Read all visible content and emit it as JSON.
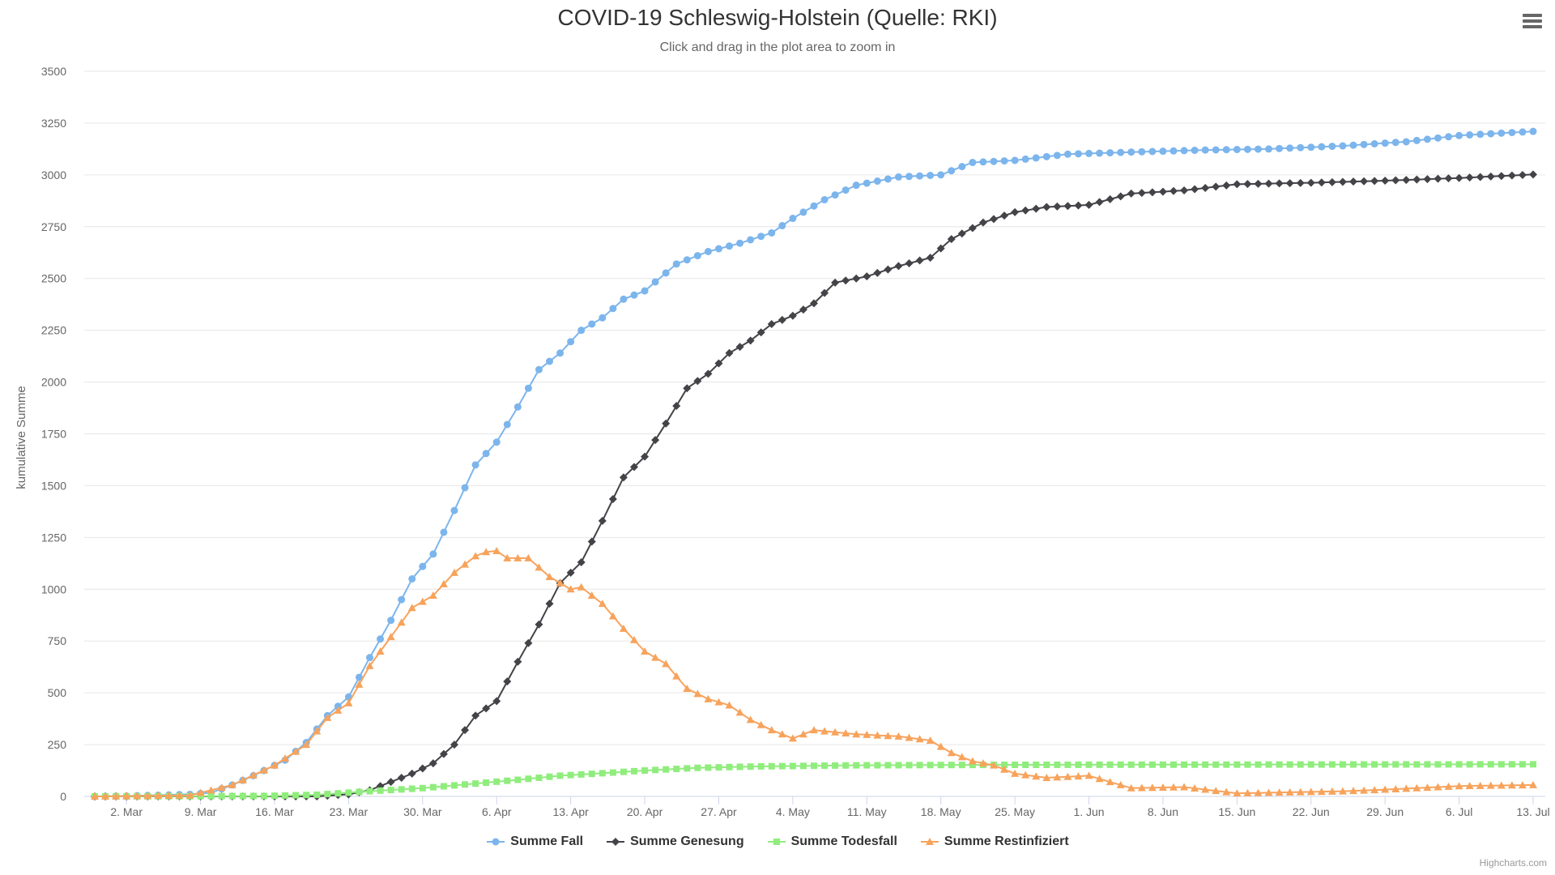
{
  "chart": {
    "title": "COVID-19 Schleswig-Holstein (Quelle: RKI)",
    "subtitle": "Click and drag in the plot area to zoom in",
    "credits": "Highcharts.com",
    "menu_icon": "hamburger-menu-icon"
  },
  "chart_data": {
    "type": "line",
    "title": "COVID-19 Schleswig-Holstein (Quelle: RKI)",
    "subtitle": "Click and drag in the plot area to zoom in",
    "xlabel": "",
    "ylabel": "kumulative Summe",
    "x_start": "2020-02-28",
    "x_end": "2020-07-13",
    "x_ticks": [
      "2. Mar",
      "9. Mar",
      "16. Mar",
      "23. Mar",
      "30. Mar",
      "6. Apr",
      "13. Apr",
      "20. Apr",
      "27. Apr",
      "4. May",
      "11. May",
      "18. May",
      "25. May",
      "1. Jun",
      "8. Jun",
      "15. Jun",
      "22. Jun",
      "29. Jun",
      "6. Jul",
      "13. Jul"
    ],
    "ylim": [
      0,
      3500
    ],
    "y_ticks": [
      0,
      250,
      500,
      750,
      1000,
      1250,
      1500,
      1750,
      2000,
      2250,
      2500,
      2750,
      3000,
      3250,
      3500
    ],
    "grid": true,
    "legend_position": "bottom-center",
    "series": [
      {
        "name": "Summe Fall",
        "color": "#7cb5ec",
        "marker": "circle",
        "points": [
          [
            "2020-02-28",
            0
          ],
          [
            "2020-03-02",
            2
          ],
          [
            "2020-03-05",
            6
          ],
          [
            "2020-03-08",
            10
          ],
          [
            "2020-03-10",
            18
          ],
          [
            "2020-03-12",
            55
          ],
          [
            "2020-03-14",
            100
          ],
          [
            "2020-03-17",
            175
          ],
          [
            "2020-03-19",
            260
          ],
          [
            "2020-03-21",
            390
          ],
          [
            "2020-03-23",
            480
          ],
          [
            "2020-03-25",
            670
          ],
          [
            "2020-03-27",
            850
          ],
          [
            "2020-03-29",
            1050
          ],
          [
            "2020-03-31",
            1170
          ],
          [
            "2020-04-02",
            1380
          ],
          [
            "2020-04-04",
            1600
          ],
          [
            "2020-04-06",
            1710
          ],
          [
            "2020-04-08",
            1880
          ],
          [
            "2020-04-10",
            2060
          ],
          [
            "2020-04-12",
            2140
          ],
          [
            "2020-04-14",
            2250
          ],
          [
            "2020-04-16",
            2310
          ],
          [
            "2020-04-18",
            2400
          ],
          [
            "2020-04-20",
            2440
          ],
          [
            "2020-04-23",
            2570
          ],
          [
            "2020-04-26",
            2630
          ],
          [
            "2020-04-29",
            2670
          ],
          [
            "2020-05-02",
            2720
          ],
          [
            "2020-05-04",
            2790
          ],
          [
            "2020-05-07",
            2880
          ],
          [
            "2020-05-10",
            2950
          ],
          [
            "2020-05-14",
            2990
          ],
          [
            "2020-05-18",
            3000
          ],
          [
            "2020-05-21",
            3060
          ],
          [
            "2020-05-25",
            3070
          ],
          [
            "2020-05-30",
            3100
          ],
          [
            "2020-06-05",
            3110
          ],
          [
            "2020-06-12",
            3120
          ],
          [
            "2020-06-18",
            3125
          ],
          [
            "2020-06-25",
            3140
          ],
          [
            "2020-07-01",
            3160
          ],
          [
            "2020-07-06",
            3190
          ],
          [
            "2020-07-13",
            3210
          ]
        ]
      },
      {
        "name": "Summe Genesung",
        "color": "#434348",
        "marker": "diamond",
        "points": [
          [
            "2020-02-28",
            0
          ],
          [
            "2020-03-20",
            0
          ],
          [
            "2020-03-23",
            10
          ],
          [
            "2020-03-25",
            30
          ],
          [
            "2020-03-27",
            70
          ],
          [
            "2020-03-29",
            110
          ],
          [
            "2020-03-31",
            160
          ],
          [
            "2020-04-02",
            250
          ],
          [
            "2020-04-04",
            390
          ],
          [
            "2020-04-06",
            460
          ],
          [
            "2020-04-08",
            650
          ],
          [
            "2020-04-10",
            830
          ],
          [
            "2020-04-12",
            1030
          ],
          [
            "2020-04-14",
            1130
          ],
          [
            "2020-04-16",
            1330
          ],
          [
            "2020-04-18",
            1540
          ],
          [
            "2020-04-20",
            1640
          ],
          [
            "2020-04-22",
            1800
          ],
          [
            "2020-04-24",
            1970
          ],
          [
            "2020-04-26",
            2040
          ],
          [
            "2020-04-28",
            2140
          ],
          [
            "2020-04-30",
            2200
          ],
          [
            "2020-05-02",
            2280
          ],
          [
            "2020-05-04",
            2320
          ],
          [
            "2020-05-06",
            2380
          ],
          [
            "2020-05-08",
            2480
          ],
          [
            "2020-05-11",
            2510
          ],
          [
            "2020-05-14",
            2560
          ],
          [
            "2020-05-17",
            2600
          ],
          [
            "2020-05-19",
            2690
          ],
          [
            "2020-05-22",
            2770
          ],
          [
            "2020-05-25",
            2820
          ],
          [
            "2020-05-28",
            2845
          ],
          [
            "2020-06-01",
            2855
          ],
          [
            "2020-06-05",
            2910
          ],
          [
            "2020-06-10",
            2925
          ],
          [
            "2020-06-15",
            2955
          ],
          [
            "2020-06-22",
            2962
          ],
          [
            "2020-06-29",
            2972
          ],
          [
            "2020-07-06",
            2985
          ],
          [
            "2020-07-13",
            3002
          ]
        ]
      },
      {
        "name": "Summe Todesfall",
        "color": "#90ed7d",
        "marker": "square",
        "points": [
          [
            "2020-02-28",
            0
          ],
          [
            "2020-03-15",
            2
          ],
          [
            "2020-03-20",
            8
          ],
          [
            "2020-03-25",
            25
          ],
          [
            "2020-03-30",
            40
          ],
          [
            "2020-04-04",
            62
          ],
          [
            "2020-04-08",
            80
          ],
          [
            "2020-04-12",
            100
          ],
          [
            "2020-04-16",
            112
          ],
          [
            "2020-04-20",
            125
          ],
          [
            "2020-04-25",
            138
          ],
          [
            "2020-05-01",
            145
          ],
          [
            "2020-05-10",
            150
          ],
          [
            "2020-05-20",
            152
          ],
          [
            "2020-06-01",
            153
          ],
          [
            "2020-06-20",
            154
          ],
          [
            "2020-07-13",
            155
          ]
        ]
      },
      {
        "name": "Summe Restinfiziert",
        "color": "#f7a35c",
        "marker": "triangle",
        "points": [
          [
            "2020-02-28",
            0
          ],
          [
            "2020-03-08",
            5
          ],
          [
            "2020-03-12",
            55
          ],
          [
            "2020-03-16",
            150
          ],
          [
            "2020-03-19",
            250
          ],
          [
            "2020-03-21",
            380
          ],
          [
            "2020-03-23",
            450
          ],
          [
            "2020-03-25",
            630
          ],
          [
            "2020-03-27",
            770
          ],
          [
            "2020-03-29",
            910
          ],
          [
            "2020-03-31",
            970
          ],
          [
            "2020-04-02",
            1080
          ],
          [
            "2020-04-04",
            1160
          ],
          [
            "2020-04-05",
            1180
          ],
          [
            "2020-04-06",
            1185
          ],
          [
            "2020-04-07",
            1150
          ],
          [
            "2020-04-09",
            1150
          ],
          [
            "2020-04-11",
            1060
          ],
          [
            "2020-04-13",
            1000
          ],
          [
            "2020-04-14",
            1010
          ],
          [
            "2020-04-16",
            930
          ],
          [
            "2020-04-18",
            810
          ],
          [
            "2020-04-20",
            700
          ],
          [
            "2020-04-22",
            640
          ],
          [
            "2020-04-24",
            520
          ],
          [
            "2020-04-26",
            470
          ],
          [
            "2020-04-28",
            440
          ],
          [
            "2020-04-30",
            370
          ],
          [
            "2020-05-02",
            320
          ],
          [
            "2020-05-04",
            280
          ],
          [
            "2020-05-06",
            320
          ],
          [
            "2020-05-10",
            300
          ],
          [
            "2020-05-14",
            290
          ],
          [
            "2020-05-17",
            270
          ],
          [
            "2020-05-19",
            210
          ],
          [
            "2020-05-21",
            170
          ],
          [
            "2020-05-23",
            150
          ],
          [
            "2020-05-25",
            110
          ],
          [
            "2020-05-28",
            90
          ],
          [
            "2020-06-01",
            100
          ],
          [
            "2020-06-05",
            40
          ],
          [
            "2020-06-10",
            45
          ],
          [
            "2020-06-15",
            15
          ],
          [
            "2020-06-20",
            20
          ],
          [
            "2020-06-25",
            25
          ],
          [
            "2020-06-30",
            35
          ],
          [
            "2020-07-06",
            50
          ],
          [
            "2020-07-13",
            55
          ]
        ]
      }
    ]
  }
}
